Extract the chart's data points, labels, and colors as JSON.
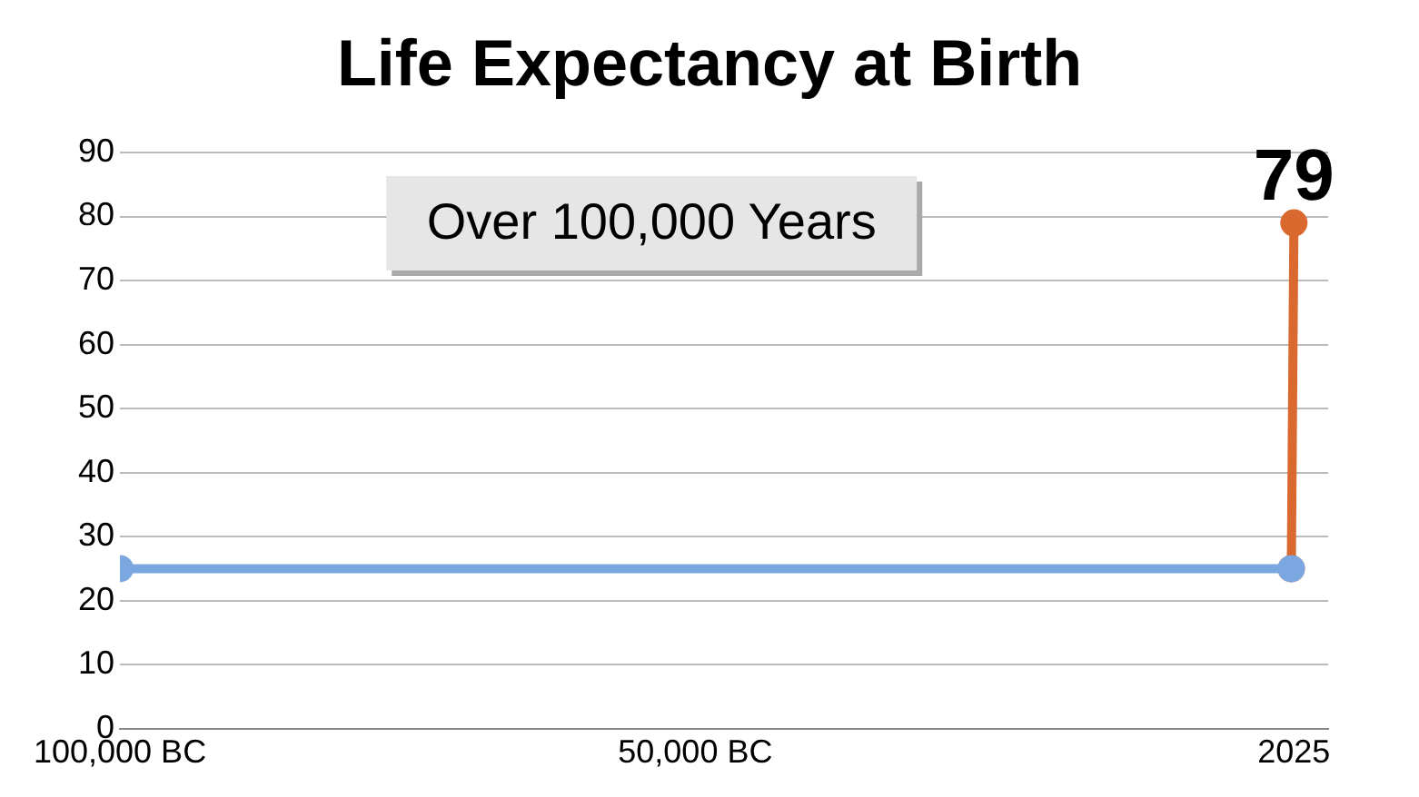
{
  "chart_data": {
    "type": "line",
    "title": "Life Expectancy at Birth",
    "series": [
      {
        "color": "#7ba7e0",
        "x": [
          -100000,
          1800
        ],
        "values": [
          25,
          25
        ]
      },
      {
        "color": "#d9692e",
        "x": [
          1800,
          2025
        ],
        "values": [
          25,
          79
        ],
        "value_labels": [
          null,
          "79"
        ]
      }
    ],
    "xlim": [
      -100000,
      5000
    ],
    "xticks": [
      {
        "value": -100000,
        "label": "100,000 BC"
      },
      {
        "value": -50000,
        "label": "50,000 BC"
      },
      {
        "value": 2025,
        "label": "2025"
      }
    ],
    "ylim": [
      0,
      90
    ],
    "yticks": [
      0,
      10,
      20,
      30,
      40,
      50,
      60,
      70,
      80,
      90
    ],
    "grid": "y",
    "legend": false,
    "marker": "circle",
    "line_style": "solid",
    "annotations": [
      "Over 100,000 Years"
    ]
  }
}
